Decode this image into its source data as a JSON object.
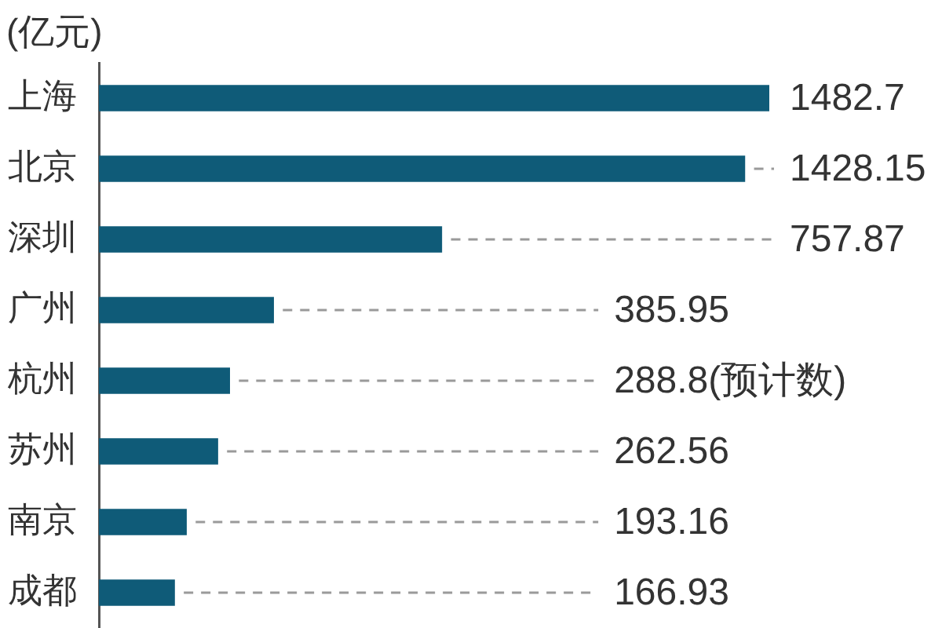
{
  "chart_data": {
    "type": "bar",
    "orientation": "horizontal",
    "xlabel": "(亿元)",
    "categories": [
      "上海",
      "北京",
      "深圳",
      "广州",
      "杭州",
      "苏州",
      "南京",
      "成都"
    ],
    "values": [
      1482.7,
      1428.15,
      757.87,
      385.95,
      288.8,
      262.56,
      193.16,
      166.93
    ],
    "value_labels": [
      "1482.7",
      "1428.15",
      "757.87",
      "385.95",
      "288.8(预计数)",
      "262.56",
      "193.16",
      "166.93"
    ],
    "color": "#0f5b78",
    "grid": false,
    "legend": false,
    "tick_labels": "y"
  }
}
